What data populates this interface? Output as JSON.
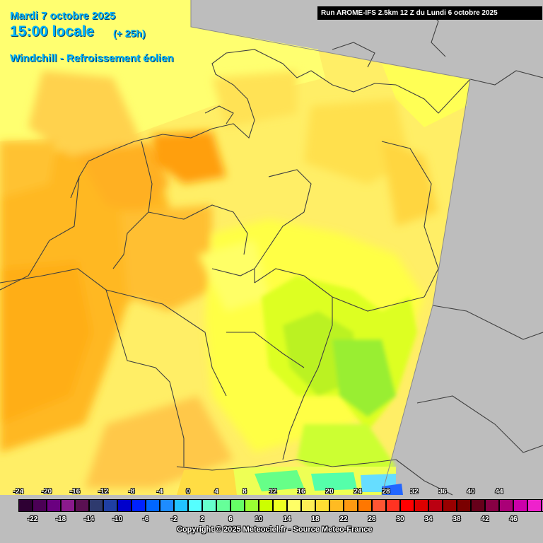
{
  "header": {
    "date": "Mardi 7 octobre 2025",
    "time": "15:00 locale",
    "offset": "(+ 25h)",
    "parameter": "Windchill - Refroissement éolien"
  },
  "run_info": "Run AROME-IFS 2.5km 12 Z du Lundi 6 octobre 2025",
  "copyright": "Copyright © 2025 Meteociel.fr - Source Meteo-France",
  "legend": {
    "ticks_top": [
      "-24",
      "-20",
      "-16",
      "-12",
      "-8",
      "-4",
      "0",
      "4",
      "8",
      "12",
      "16",
      "20",
      "24",
      "28",
      "32",
      "36",
      "40",
      "44"
    ],
    "ticks_bottom": [
      "-22",
      "-18",
      "-14",
      "-10",
      "-6",
      "-2",
      "2",
      "6",
      "10",
      "14",
      "18",
      "22",
      "26",
      "30",
      "34",
      "38",
      "42",
      "46"
    ],
    "colors": [
      "#2e0033",
      "#4b0055",
      "#6a0080",
      "#8a1a8c",
      "#5a1052",
      "#2e3a6e",
      "#1f3fa3",
      "#0000cc",
      "#0022ff",
      "#0066ff",
      "#1e8cff",
      "#22c3ff",
      "#55ffff",
      "#66ffcc",
      "#66ff99",
      "#66ff66",
      "#99ff33",
      "#ccff00",
      "#eeff22",
      "#ffff66",
      "#ffee55",
      "#ffdd33",
      "#ffbb22",
      "#ff9911",
      "#ff7700",
      "#ff5533",
      "#ff3322",
      "#ff0000",
      "#dd0000",
      "#bb0011",
      "#990000",
      "#7a0000",
      "#66001a",
      "#880044",
      "#aa0077",
      "#cc00aa",
      "#ee22cc",
      "#ff55ee",
      "#ff88ff"
    ]
  },
  "map_colors": {
    "no_data": "#bdbdbd",
    "border": "#404040",
    "sea": "#ffff66",
    "orange": "#ffb31a",
    "deep_orange": "#ff9900",
    "amber": "#ffd24d",
    "yellow": "#ffee55",
    "lime": "#ddff22",
    "green": "#99ee33"
  }
}
